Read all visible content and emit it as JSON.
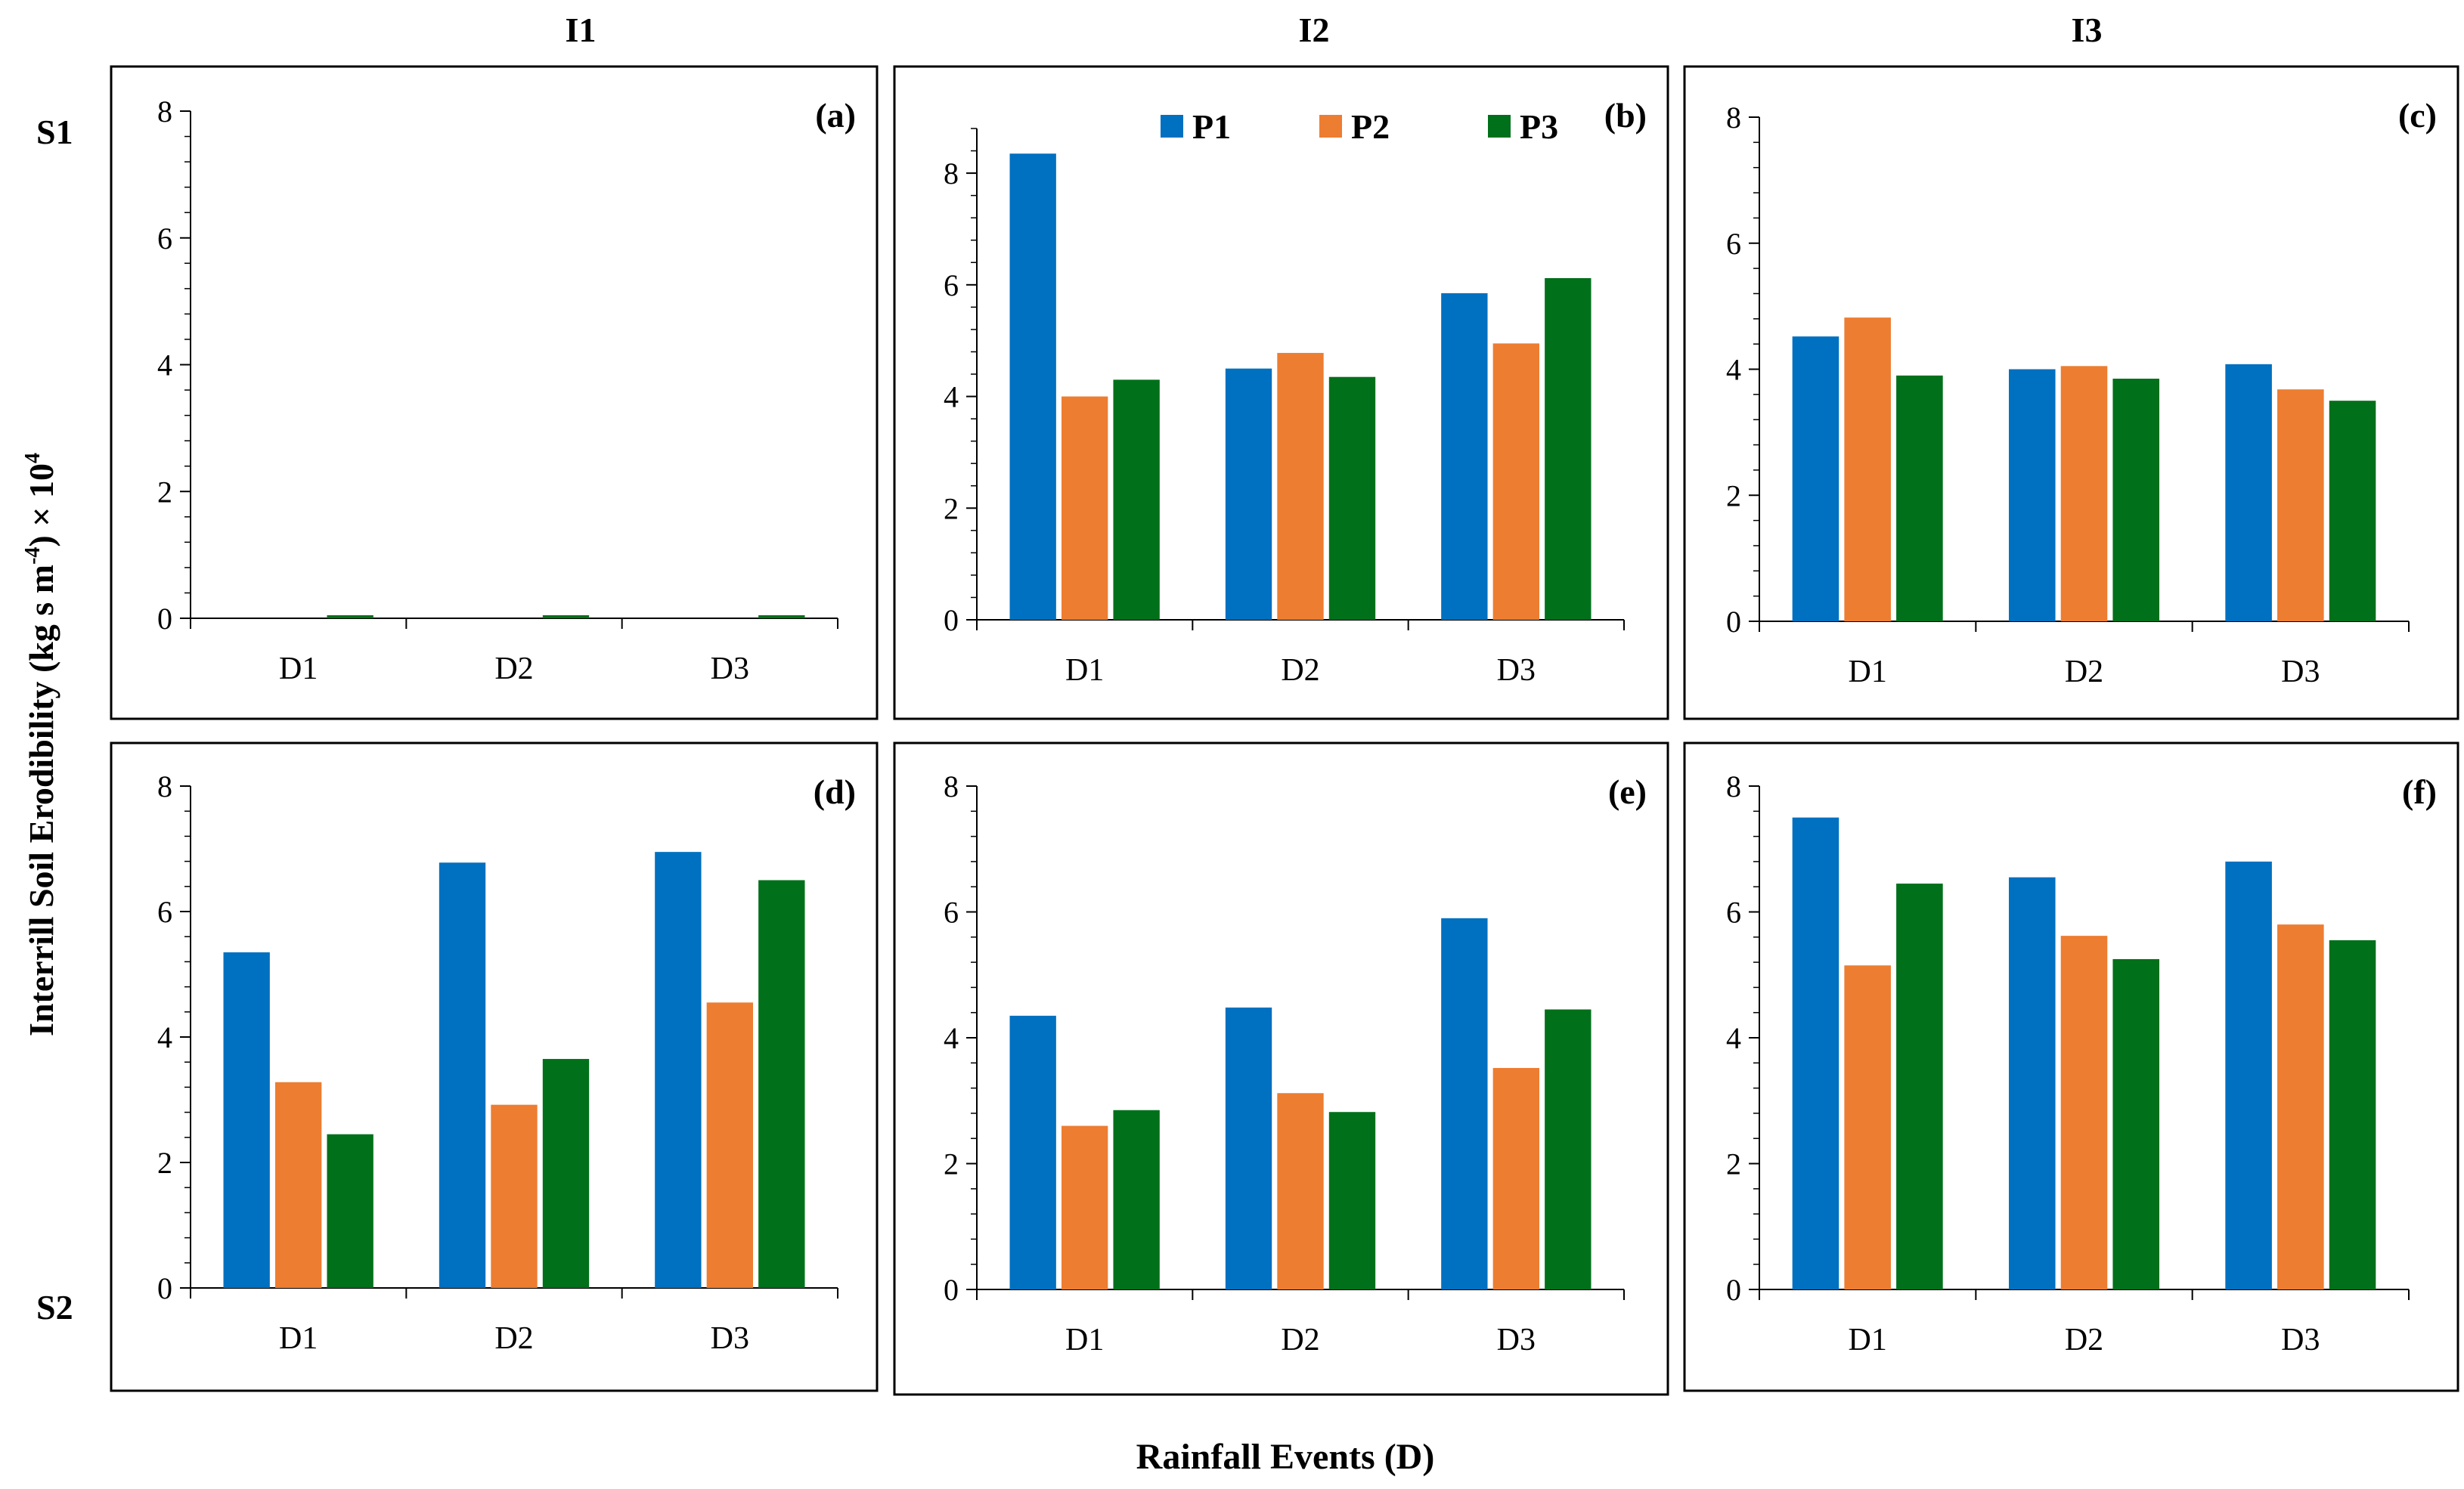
{
  "figure": {
    "col_headers": [
      "I1",
      "I2",
      "I3"
    ],
    "row_headers": [
      "S1",
      "S2"
    ],
    "y_axis_label_main": "Interrill Soil Erodibility (kg s m",
    "y_axis_label_exp1": "-4",
    "y_axis_label_mid": ") × 10",
    "y_axis_label_exp2": "4",
    "x_axis_label": "Rainfall Events (D)"
  },
  "legend": [
    {
      "name": "P1",
      "color": "#0070C0"
    },
    {
      "name": "P2",
      "color": "#ED7D31"
    },
    {
      "name": "P3",
      "color": "#00701A"
    }
  ],
  "chart_data": [
    {
      "panel": "(a)",
      "type": "bar",
      "categories": [
        "D1",
        "D2",
        "D3"
      ],
      "ylim": [
        0,
        8
      ],
      "yticks": [
        "0",
        "2",
        "4",
        "6",
        "8"
      ],
      "series": [
        {
          "name": "P1",
          "values": [
            0,
            0,
            0
          ]
        },
        {
          "name": "P2",
          "values": [
            0,
            0,
            0
          ]
        },
        {
          "name": "P3",
          "values": [
            0.02,
            0.02,
            0.02
          ]
        }
      ]
    },
    {
      "panel": "(b)",
      "type": "bar",
      "categories": [
        "D1",
        "D2",
        "D3"
      ],
      "ylim": [
        0,
        9
      ],
      "yticks": [
        "0",
        "2",
        "4",
        "6",
        "8"
      ],
      "series": [
        {
          "name": "P1",
          "values": [
            8.35,
            4.5,
            5.85
          ]
        },
        {
          "name": "P2",
          "values": [
            4.0,
            4.78,
            4.95
          ]
        },
        {
          "name": "P3",
          "values": [
            4.3,
            4.35,
            6.12
          ]
        }
      ]
    },
    {
      "panel": "(c)",
      "type": "bar",
      "categories": [
        "D1",
        "D2",
        "D3"
      ],
      "ylim": [
        0,
        8
      ],
      "yticks": [
        "0",
        "2",
        "4",
        "6",
        "8"
      ],
      "series": [
        {
          "name": "P1",
          "values": [
            4.52,
            4.0,
            4.08
          ]
        },
        {
          "name": "P2",
          "values": [
            4.82,
            4.05,
            3.68
          ]
        },
        {
          "name": "P3",
          "values": [
            3.9,
            3.85,
            3.5
          ]
        }
      ]
    },
    {
      "panel": "(d)",
      "type": "bar",
      "categories": [
        "D1",
        "D2",
        "D3"
      ],
      "ylim": [
        0,
        8
      ],
      "yticks": [
        "0",
        "2",
        "4",
        "6",
        "8"
      ],
      "series": [
        {
          "name": "P1",
          "values": [
            5.35,
            6.78,
            6.95
          ]
        },
        {
          "name": "P2",
          "values": [
            3.28,
            2.92,
            4.55
          ]
        },
        {
          "name": "P3",
          "values": [
            2.45,
            3.65,
            6.5
          ]
        }
      ]
    },
    {
      "panel": "(e)",
      "type": "bar",
      "categories": [
        "D1",
        "D2",
        "D3"
      ],
      "ylim": [
        0,
        8
      ],
      "yticks": [
        "0",
        "2",
        "4",
        "6",
        "8"
      ],
      "series": [
        {
          "name": "P1",
          "values": [
            4.35,
            4.48,
            5.9
          ]
        },
        {
          "name": "P2",
          "values": [
            2.6,
            3.12,
            3.52
          ]
        },
        {
          "name": "P3",
          "values": [
            2.85,
            2.82,
            4.45
          ]
        }
      ]
    },
    {
      "panel": "(f)",
      "type": "bar",
      "categories": [
        "D1",
        "D2",
        "D3"
      ],
      "ylim": [
        0,
        8
      ],
      "yticks": [
        "0",
        "2",
        "4",
        "6",
        "8"
      ],
      "series": [
        {
          "name": "P1",
          "values": [
            7.5,
            6.55,
            6.8
          ]
        },
        {
          "name": "P2",
          "values": [
            5.15,
            5.62,
            5.8
          ]
        },
        {
          "name": "P3",
          "values": [
            6.45,
            5.25,
            5.55
          ]
        }
      ]
    }
  ]
}
